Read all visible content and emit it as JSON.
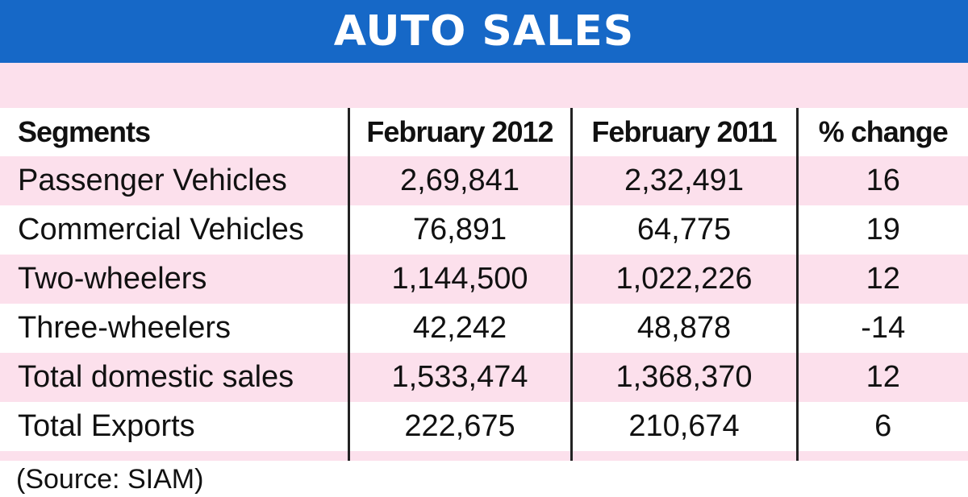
{
  "header": {
    "title": "AUTO SALES"
  },
  "chart_data": {
    "type": "table",
    "title": "AUTO SALES",
    "columns": [
      "Segments",
      "February 2012",
      "February 2011",
      "% change"
    ],
    "rows": [
      [
        "Passenger Vehicles",
        "2,69,841",
        "2,32,491",
        "16"
      ],
      [
        "Commercial Vehicles",
        "76,891",
        "64,775",
        "19"
      ],
      [
        "Two-wheelers",
        "1,144,500",
        "1,022,226",
        "12"
      ],
      [
        "Three-wheelers",
        "42,242",
        "48,878",
        "-14"
      ],
      [
        "Total domestic sales",
        "1,533,474",
        "1,368,370",
        "12"
      ],
      [
        "Total Exports",
        "222,675",
        "210,674",
        "6"
      ]
    ],
    "source": "(Source: SIAM)"
  },
  "colors": {
    "title_bar": "#1668c7",
    "stripe": "#fce0ec",
    "text": "#111111"
  }
}
